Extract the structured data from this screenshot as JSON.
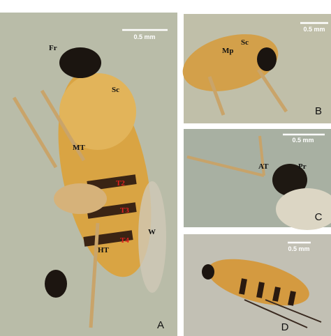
{
  "panels": [
    {
      "letter": "A",
      "scale_bar": "0.5 mm",
      "labels": [
        "Fr",
        "Sc",
        "MT",
        "T2",
        "T3",
        "T4",
        "W",
        "HT"
      ]
    },
    {
      "letter": "B",
      "scale_bar": "0.5 mm",
      "labels": [
        "Mp",
        "Sc"
      ]
    },
    {
      "letter": "C",
      "scale_bar": "0.5 mm",
      "labels": [
        "AT",
        "Pr"
      ]
    },
    {
      "letter": "D",
      "scale_bar": "0.5 mm"
    }
  ]
}
